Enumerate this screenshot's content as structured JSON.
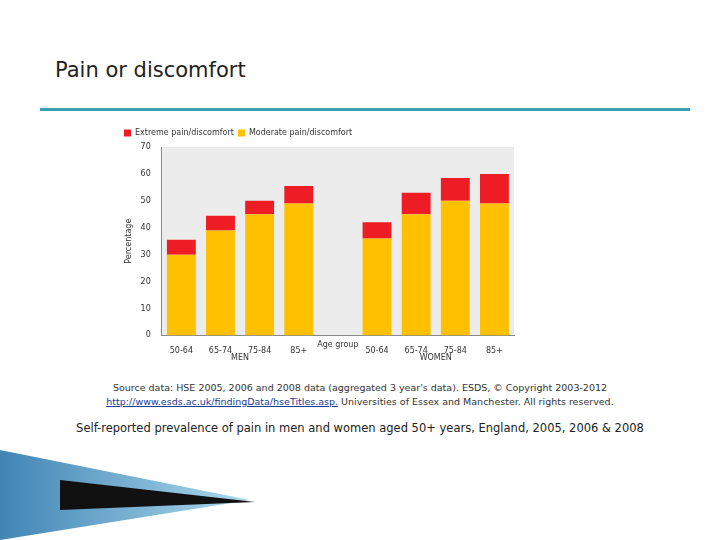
{
  "slide": {
    "title": "Pain or discomfort",
    "source_line": "Source data: HSE 2005, 2006 and 2008 data (aggregated 3 year's data).  ESDS, © Copyright 2003-2012",
    "source_link": "http://www.esds.ac.uk/findingData/hseTitles.asp.",
    "source_rest": "Universities of Essex and Manchester. All rights reserved.",
    "caption": "Self-reported prevalence of pain in men and women aged 50+ years, England, 2005, 2006 & 2008"
  },
  "chart_data": {
    "type": "bar",
    "stacked": true,
    "categories": [
      "50-64",
      "65-74",
      "75-84",
      "85+",
      null,
      "50-64",
      "65-74",
      "75-84",
      "85+"
    ],
    "groups": [
      {
        "label": "MEN",
        "start": 0,
        "end": 3
      },
      {
        "label": "WOMEN",
        "start": 5,
        "end": 8
      }
    ],
    "x_label": "Age group",
    "y_label": "Percentage",
    "series": [
      {
        "name": "Moderate pain/discomfort",
        "color": "#ffc000",
        "values": [
          30,
          39,
          45,
          49,
          null,
          36,
          45,
          50,
          49
        ]
      },
      {
        "name": "Extreme pain/discomfort",
        "color": "#ee1c25",
        "values": [
          5.5,
          5.5,
          5,
          6.5,
          null,
          6,
          8,
          8.5,
          11
        ]
      }
    ],
    "ylim": [
      0,
      70
    ],
    "yticks": [
      0,
      10,
      20,
      30,
      40,
      50,
      60,
      70
    ],
    "grid": false,
    "legend": "top-left"
  }
}
